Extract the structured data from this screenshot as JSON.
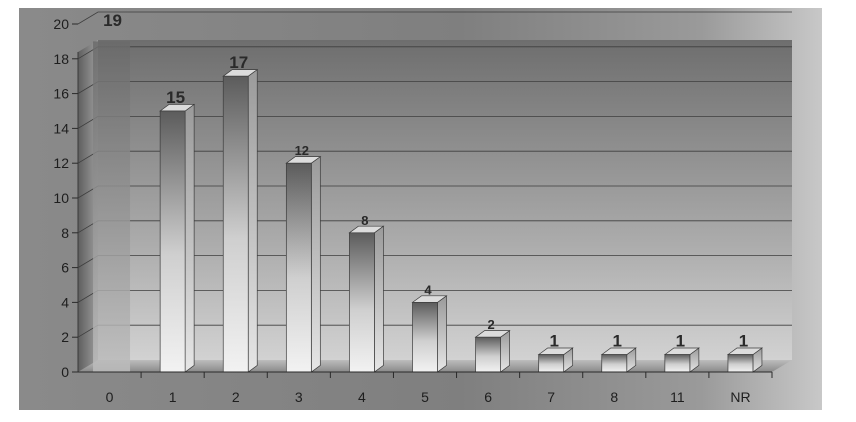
{
  "chart_data": {
    "type": "bar",
    "title": "",
    "xlabel": "",
    "ylabel": "",
    "categories": [
      "0",
      "1",
      "2",
      "3",
      "4",
      "5",
      "6",
      "7",
      "8",
      "11",
      "NR"
    ],
    "values": [
      19,
      15,
      17,
      12,
      8,
      4,
      2,
      1,
      1,
      1,
      1
    ],
    "ylim": [
      0,
      20
    ],
    "yticks": [
      "0",
      "2",
      "4",
      "6",
      "8",
      "10",
      "12",
      "14",
      "16",
      "18",
      "20"
    ],
    "grid": true,
    "legend": "none",
    "three_d": true
  }
}
